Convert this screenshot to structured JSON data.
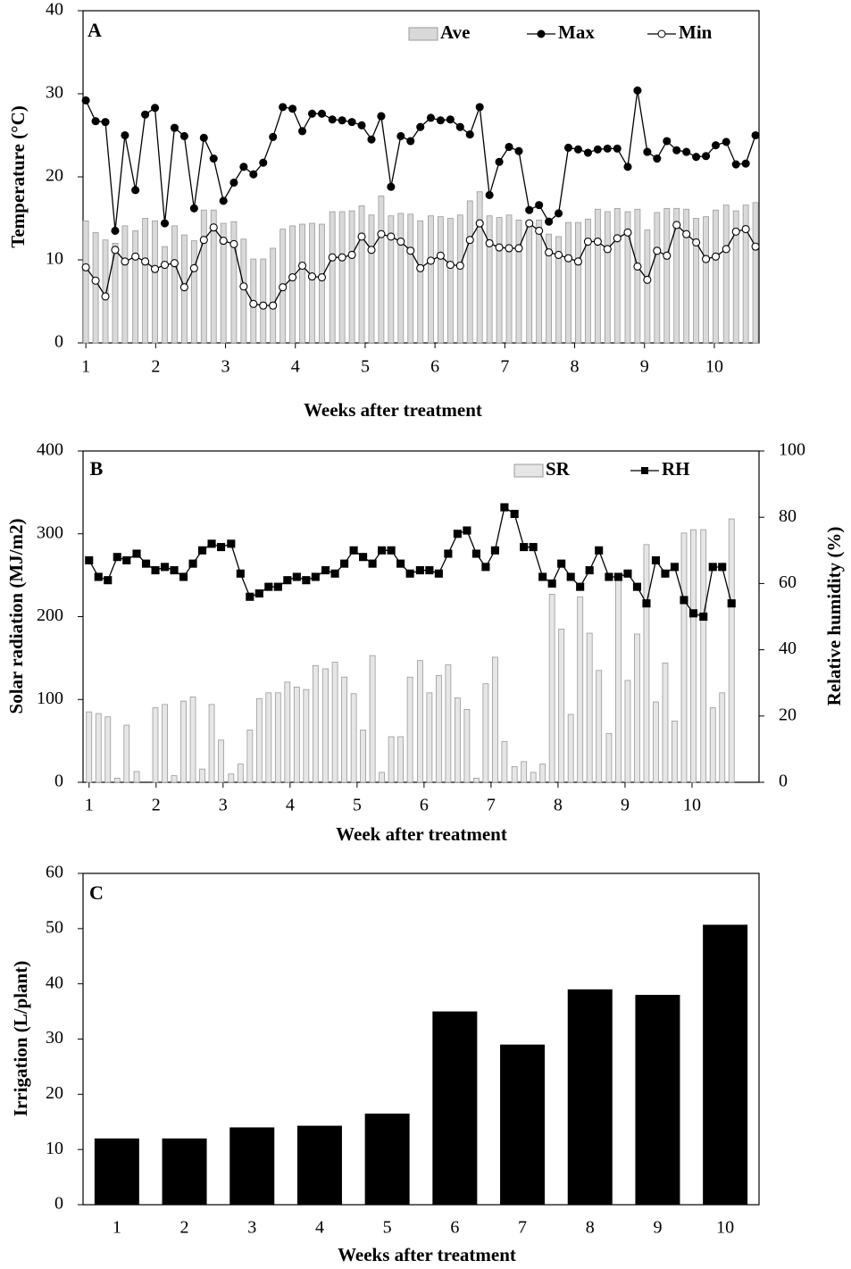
{
  "chart_data": [
    {
      "type": "combo",
      "panel": "A",
      "x_label": "Weeks after treatment",
      "y_label": "Temperature (°C)",
      "legend": "top-right",
      "xlim": [
        0.96,
        10.64
      ],
      "xticks": [
        1,
        2,
        3,
        4,
        5,
        6,
        7,
        8,
        9,
        10
      ],
      "ylim": [
        0,
        40
      ],
      "yticks": [
        0,
        10,
        20,
        30,
        40
      ],
      "x": [
        1.0,
        1.14,
        1.28,
        1.42,
        1.56,
        1.71,
        1.85,
        1.99,
        2.13,
        2.27,
        2.41,
        2.55,
        2.69,
        2.83,
        2.97,
        3.12,
        3.26,
        3.4,
        3.54,
        3.68,
        3.82,
        3.96,
        4.1,
        4.24,
        4.38,
        4.53,
        4.67,
        4.81,
        4.95,
        5.09,
        5.23,
        5.37,
        5.51,
        5.65,
        5.79,
        5.94,
        6.08,
        6.22,
        6.36,
        6.5,
        6.64,
        6.78,
        6.92,
        7.06,
        7.2,
        7.35,
        7.49,
        7.63,
        7.77,
        7.91,
        8.05,
        8.19,
        8.33,
        8.47,
        8.61,
        8.76,
        8.9,
        9.04,
        9.18,
        9.32,
        9.46,
        9.6,
        9.74,
        9.88,
        10.02,
        10.17,
        10.31,
        10.45,
        10.59
      ],
      "series": [
        {
          "name": "Ave",
          "kind": "bar",
          "color": "#d9d9d9",
          "values": [
            14.7,
            13.3,
            12.4,
            12.0,
            14.1,
            13.5,
            15.0,
            14.7,
            11.6,
            14.1,
            13.0,
            12.3,
            16.0,
            16.0,
            14.4,
            14.6,
            12.5,
            10.1,
            10.1,
            11.4,
            13.7,
            14.1,
            14.3,
            14.4,
            14.3,
            15.8,
            15.8,
            15.9,
            16.5,
            15.4,
            17.7,
            15.3,
            15.6,
            15.5,
            14.7,
            15.3,
            15.2,
            15.0,
            15.4,
            17.1,
            18.2,
            15.3,
            15.1,
            15.4,
            14.8,
            14.6,
            14.8,
            13.1,
            12.8,
            14.5,
            14.5,
            14.9,
            16.1,
            15.8,
            16.2,
            15.8,
            16.1,
            13.6,
            15.7,
            16.2,
            16.2,
            16.1,
            15.0,
            15.2,
            16.0,
            16.6,
            15.9,
            16.6,
            16.9
          ]
        },
        {
          "name": "Max",
          "kind": "line",
          "marker": "filled-circle",
          "color": "#000000",
          "values": [
            29.2,
            26.7,
            26.6,
            13.5,
            25.0,
            18.4,
            27.5,
            28.3,
            14.4,
            25.9,
            24.9,
            16.2,
            24.7,
            22.2,
            17.1,
            19.3,
            21.2,
            20.3,
            21.7,
            24.8,
            28.4,
            28.2,
            25.5,
            27.6,
            27.6,
            26.9,
            26.8,
            26.6,
            26.2,
            24.5,
            27.3,
            18.8,
            24.9,
            24.3,
            26.0,
            27.1,
            26.8,
            26.9,
            26.0,
            25.1,
            28.4,
            17.8,
            21.8,
            23.6,
            23.1,
            16.0,
            16.6,
            14.6,
            15.6,
            23.5,
            23.3,
            22.9,
            23.3,
            23.4,
            23.4,
            21.2,
            30.4,
            23.0,
            22.2,
            24.3,
            23.2,
            23.0,
            22.4,
            22.5,
            23.8,
            24.2,
            21.5,
            21.6,
            25.0
          ]
        },
        {
          "name": "Min",
          "kind": "line",
          "marker": "open-circle",
          "color": "#000000",
          "values": [
            9.1,
            7.5,
            5.6,
            11.2,
            9.8,
            10.4,
            9.8,
            8.9,
            9.4,
            9.6,
            6.7,
            9.0,
            12.4,
            13.9,
            12.3,
            11.9,
            6.8,
            4.7,
            4.5,
            4.5,
            6.7,
            7.9,
            9.3,
            8.0,
            7.9,
            10.3,
            10.3,
            10.6,
            12.8,
            11.2,
            13.1,
            12.8,
            12.2,
            11.1,
            9.0,
            9.9,
            10.5,
            9.4,
            9.3,
            12.4,
            14.4,
            12.0,
            11.5,
            11.4,
            11.4,
            14.4,
            13.5,
            10.9,
            10.6,
            10.2,
            9.8,
            12.2,
            12.2,
            11.3,
            12.6,
            13.3,
            9.2,
            7.6,
            11.1,
            10.5,
            14.2,
            13.1,
            12.1,
            10.1,
            10.4,
            11.3,
            13.4,
            13.7,
            11.6
          ]
        }
      ]
    },
    {
      "type": "combo",
      "panel": "B",
      "x_label": "Week after treatment",
      "y_label": "Solar radiation (MJ/m2)",
      "y2_label": "Relative humidity (%)",
      "legend": "top-right",
      "xlim": [
        0.91,
        11.0
      ],
      "xticks": [
        1,
        2,
        3,
        4,
        5,
        6,
        7,
        8,
        9,
        10
      ],
      "ylim": [
        0,
        400
      ],
      "yticks": [
        0,
        100,
        200,
        300,
        400
      ],
      "y2lim": [
        0,
        100
      ],
      "y2ticks": [
        0,
        20,
        40,
        60,
        80,
        100
      ],
      "x": [
        1.0,
        1.14,
        1.28,
        1.42,
        1.56,
        1.71,
        1.85,
        1.99,
        2.13,
        2.27,
        2.41,
        2.55,
        2.69,
        2.83,
        2.97,
        3.12,
        3.26,
        3.4,
        3.54,
        3.68,
        3.82,
        3.96,
        4.1,
        4.24,
        4.38,
        4.53,
        4.67,
        4.81,
        4.95,
        5.09,
        5.23,
        5.37,
        5.51,
        5.65,
        5.79,
        5.94,
        6.08,
        6.22,
        6.36,
        6.5,
        6.64,
        6.78,
        6.92,
        7.06,
        7.2,
        7.35,
        7.49,
        7.63,
        7.77,
        7.91,
        8.05,
        8.19,
        8.33,
        8.47,
        8.61,
        8.76,
        8.9,
        9.04,
        9.18,
        9.32,
        9.46,
        9.6,
        9.74,
        9.88,
        10.02,
        10.17,
        10.31,
        10.45,
        10.59
      ],
      "series": [
        {
          "name": "SR",
          "kind": "bar",
          "color": "#e6e6e6",
          "values": [
            85,
            83,
            79,
            5,
            69,
            13,
            0,
            90,
            94,
            8,
            98,
            103,
            16,
            94,
            51,
            10,
            22,
            63,
            101,
            108,
            108,
            121,
            115,
            112,
            141,
            137,
            145,
            127,
            107,
            63,
            153,
            12,
            55,
            55,
            127,
            147,
            108,
            129,
            142,
            102,
            88,
            5,
            119,
            151,
            49,
            19,
            25,
            12,
            22,
            227,
            185,
            82,
            224,
            180,
            135,
            59,
            250,
            123,
            179,
            287,
            97,
            144,
            74,
            301,
            305,
            305,
            90,
            108,
            318
          ]
        },
        {
          "name": "RH",
          "kind": "line",
          "marker": "square",
          "axis": "y2",
          "color": "#000000",
          "values": [
            67,
            62,
            61,
            68,
            67,
            69,
            66,
            64,
            65,
            64,
            62,
            66,
            70,
            72,
            71,
            72,
            63,
            56,
            57,
            59,
            59,
            61,
            62,
            61,
            62,
            64,
            63,
            66,
            70,
            68,
            66,
            70,
            70,
            66,
            63,
            64,
            64,
            63,
            69,
            75,
            76,
            69,
            65,
            70,
            83,
            81,
            71,
            71,
            62,
            60,
            66,
            62,
            59,
            64,
            70,
            62,
            62,
            63,
            59,
            54,
            67,
            63,
            65,
            55,
            51,
            50,
            65,
            65,
            54
          ]
        }
      ]
    },
    {
      "type": "bar",
      "panel": "C",
      "x_label": "Weeks after treatment",
      "y_label": "Irrigation (L/plant)",
      "color": "#000000",
      "categories": [
        "1",
        "2",
        "3",
        "4",
        "5",
        "6",
        "7",
        "8",
        "9",
        "10"
      ],
      "values": [
        12,
        12,
        14,
        14.3,
        16.5,
        35,
        29,
        39,
        38,
        50.7
      ],
      "ylim": [
        0,
        60
      ],
      "yticks": [
        0,
        10,
        20,
        30,
        40,
        50,
        60
      ]
    }
  ]
}
